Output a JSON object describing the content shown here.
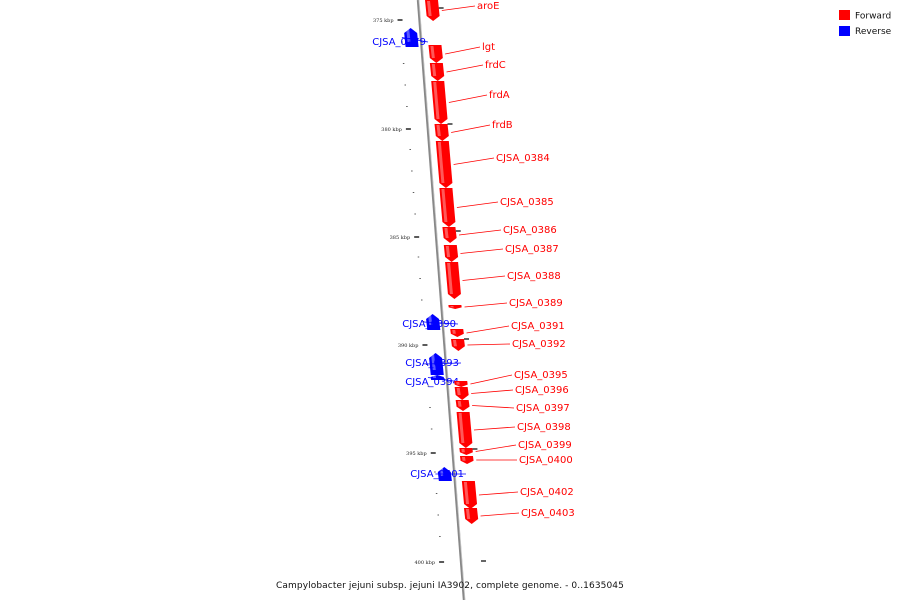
{
  "caption": "Campylobacter jejuni subsp. jejuni IA3902, complete genome. - 0..1635045",
  "legend": [
    {
      "label": "Forward",
      "color": "#ff0000"
    },
    {
      "label": "Reverse",
      "color": "#0000ff"
    }
  ],
  "colors": {
    "forward": "#ff0000",
    "reverse": "#0000ff",
    "backbone": "#888888"
  },
  "ticks": [
    {
      "label": "375 kbp"
    },
    {
      "label": "380 kbp"
    },
    {
      "label": "385 kbp"
    },
    {
      "label": "390 kbp"
    },
    {
      "label": "395 kbp"
    },
    {
      "label": "400 kbp"
    }
  ],
  "genes": [
    {
      "name": "aroE",
      "strand": "forward"
    },
    {
      "name": "CJSA_0379",
      "strand": "reverse"
    },
    {
      "name": "lgt",
      "strand": "forward"
    },
    {
      "name": "frdC",
      "strand": "forward"
    },
    {
      "name": "frdA",
      "strand": "forward"
    },
    {
      "name": "frdB",
      "strand": "forward"
    },
    {
      "name": "CJSA_0384",
      "strand": "forward"
    },
    {
      "name": "CJSA_0385",
      "strand": "forward"
    },
    {
      "name": "CJSA_0386",
      "strand": "forward"
    },
    {
      "name": "CJSA_0387",
      "strand": "forward"
    },
    {
      "name": "CJSA_0388",
      "strand": "forward"
    },
    {
      "name": "CJSA_0389",
      "strand": "forward"
    },
    {
      "name": "CJSA_0390",
      "strand": "reverse"
    },
    {
      "name": "CJSA_0391",
      "strand": "forward"
    },
    {
      "name": "CJSA_0392",
      "strand": "forward"
    },
    {
      "name": "CJSA_0393",
      "strand": "reverse"
    },
    {
      "name": "CJSA_0394",
      "strand": "reverse"
    },
    {
      "name": "CJSA_0395",
      "strand": "forward"
    },
    {
      "name": "CJSA_0396",
      "strand": "forward"
    },
    {
      "name": "CJSA_0397",
      "strand": "forward"
    },
    {
      "name": "CJSA_0398",
      "strand": "forward"
    },
    {
      "name": "CJSA_0399",
      "strand": "forward"
    },
    {
      "name": "CJSA_0400",
      "strand": "forward"
    },
    {
      "name": "CJSA_0401",
      "strand": "reverse"
    },
    {
      "name": "CJSA_0402",
      "strand": "forward"
    },
    {
      "name": "CJSA_0403",
      "strand": "forward"
    }
  ]
}
